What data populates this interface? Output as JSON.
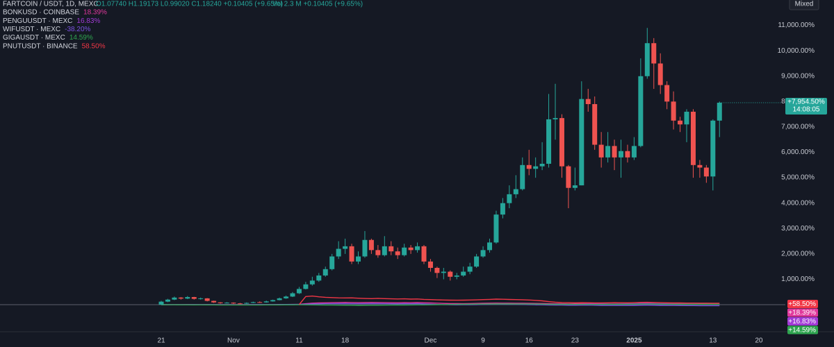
{
  "header": {
    "symbol": "FARTCOIN / USDT, 1D, MEXC",
    "ohlc": "O1.07740 H1.19173 L0.99020 C1.18240 +0.10405 (+9.65%)",
    "volume": "Vol 2.3 M +0.10405 (+9.65%)"
  },
  "mode_button": "Mixed",
  "chart_data": {
    "type": "candlestick",
    "categories": [
      "21",
      null,
      null,
      null,
      null,
      null,
      null,
      null,
      null,
      null,
      null,
      "Nov",
      null,
      null,
      null,
      null,
      null,
      null,
      null,
      null,
      null,
      "11",
      null,
      null,
      null,
      null,
      null,
      null,
      "18",
      null,
      null,
      null,
      null,
      null,
      null,
      null,
      null,
      null,
      null,
      null,
      null,
      "Dec",
      null,
      null,
      null,
      null,
      null,
      null,
      null,
      "9",
      null,
      null,
      null,
      null,
      null,
      null,
      "16",
      null,
      null,
      null,
      null,
      null,
      null,
      "23",
      null,
      null,
      null,
      null,
      null,
      null,
      null,
      null,
      "2025",
      null,
      null,
      null,
      null,
      null,
      null,
      null,
      null,
      null,
      null,
      null,
      "13",
      null,
      null,
      null,
      null,
      null,
      null,
      "20"
    ],
    "open": [
      0,
      120,
      200,
      280,
      240,
      300,
      230,
      250,
      150,
      90,
      60,
      80,
      50,
      40,
      70,
      100,
      90,
      130,
      180,
      250,
      320,
      450,
      620,
      800,
      950,
      1150,
      1400,
      1900,
      2200,
      2300,
      1700,
      1900,
      2550,
      2150,
      1950,
      2300,
      2100,
      1950,
      2250,
      2150,
      2300,
      1700,
      1450,
      1250,
      1300,
      1100,
      1150,
      1300,
      1500,
      1900,
      2150,
      2450,
      3550,
      4000,
      4350,
      4550,
      5500,
      5350,
      5450,
      5550,
      7300,
      7350,
      5450,
      4600,
      4700,
      8100,
      7900,
      6300,
      5800,
      6250,
      5800,
      6050,
      5800,
      6250,
      9000,
      10300,
      9500,
      8650,
      8000,
      7250,
      7100,
      7600,
      5500,
      5400,
      5050,
      7250,
      null,
      null,
      null,
      null,
      null,
      null
    ],
    "high": [
      150,
      230,
      320,
      300,
      340,
      310,
      280,
      260,
      160,
      100,
      100,
      90,
      70,
      90,
      120,
      130,
      160,
      200,
      280,
      360,
      500,
      700,
      900,
      1100,
      1250,
      1500,
      2000,
      2500,
      2600,
      2400,
      2100,
      2900,
      2600,
      2350,
      2700,
      2500,
      2250,
      2400,
      2350,
      2450,
      2350,
      1800,
      1500,
      1450,
      1350,
      1250,
      1500,
      1650,
      2000,
      2300,
      2600,
      3700,
      4200,
      4700,
      5100,
      5800,
      6100,
      5800,
      6400,
      8300,
      8700,
      7500,
      5500,
      5400,
      8800,
      8500,
      8200,
      6800,
      6800,
      6500,
      6500,
      6300,
      6600,
      9700,
      10900,
      10500,
      9900,
      8800,
      8400,
      7400,
      7700,
      7700,
      5700,
      5500,
      7300,
      8000,
      null,
      null,
      null,
      null,
      null,
      null
    ],
    "low": [
      0,
      100,
      180,
      200,
      220,
      200,
      200,
      130,
      70,
      40,
      50,
      30,
      20,
      30,
      60,
      70,
      80,
      120,
      170,
      230,
      300,
      420,
      600,
      750,
      900,
      1100,
      1350,
      1800,
      2000,
      1600,
      1600,
      1850,
      2000,
      1850,
      1900,
      1950,
      1800,
      1900,
      2000,
      2050,
      1600,
      1300,
      1050,
      1000,
      950,
      1000,
      1100,
      1200,
      1450,
      1850,
      2050,
      2400,
      3400,
      3800,
      4200,
      4500,
      5100,
      5000,
      5300,
      5400,
      6500,
      5000,
      3800,
      4500,
      4700,
      7600,
      6100,
      5400,
      5600,
      5300,
      5000,
      5600,
      5700,
      6200,
      8900,
      8500,
      8300,
      7700,
      6900,
      6800,
      6400,
      5000,
      5000,
      4800,
      4500,
      6600,
      null,
      null,
      null,
      null,
      null,
      null
    ],
    "close": [
      120,
      200,
      280,
      240,
      300,
      230,
      250,
      150,
      90,
      60,
      80,
      50,
      40,
      70,
      100,
      90,
      130,
      180,
      250,
      320,
      450,
      620,
      800,
      950,
      1150,
      1400,
      1900,
      2200,
      2300,
      1700,
      1900,
      2550,
      2150,
      1950,
      2300,
      2100,
      1950,
      2250,
      2150,
      2300,
      1700,
      1450,
      1250,
      1300,
      1100,
      1150,
      1300,
      1500,
      1900,
      2150,
      2450,
      3550,
      4000,
      4350,
      4550,
      5500,
      5350,
      5450,
      5550,
      7300,
      7350,
      5450,
      4600,
      4700,
      8100,
      7900,
      6300,
      5800,
      6250,
      5800,
      6050,
      5800,
      6250,
      9000,
      10300,
      9500,
      8650,
      8000,
      7250,
      7100,
      7600,
      5500,
      5400,
      5050,
      7250,
      7954.5,
      null,
      null,
      null,
      null,
      null,
      null
    ],
    "up_color": "#26a69a",
    "down_color": "#ef5350",
    "last_label": "+7,954.50%",
    "countdown": "14:08:05",
    "ylim": [
      -1065,
      12000
    ],
    "yticks": [
      {
        "value": 1000,
        "label": "1,000.00%"
      },
      {
        "value": 2000,
        "label": "2,000.00%"
      },
      {
        "value": 3000,
        "label": "3,000.00%"
      },
      {
        "value": 4000,
        "label": "4,000.00%"
      },
      {
        "value": 5000,
        "label": "5,000.00%"
      },
      {
        "value": 6000,
        "label": "6,000.00%"
      },
      {
        "value": 7000,
        "label": "7,000.00%"
      },
      {
        "value": 8000,
        "label": "8,000.00%"
      },
      {
        "value": 9000,
        "label": "9,000.00%"
      },
      {
        "value": 10000,
        "label": "10,000.00%"
      },
      {
        "value": 11000,
        "label": "11,000.00%"
      }
    ],
    "series": [
      {
        "name": "BONKUSD · COINBASE",
        "color": "#e0389b",
        "last_label": "18.39%",
        "badge_label": "+18.39%",
        "values": [
          0,
          3,
          5,
          4,
          6,
          5,
          4,
          3,
          2,
          1,
          2,
          1,
          0,
          2,
          3,
          2,
          4,
          5,
          7,
          9,
          12,
          15,
          40,
          60,
          70,
          75,
          80,
          85,
          90,
          85,
          80,
          82,
          88,
          85,
          80,
          78,
          76,
          80,
          78,
          82,
          75,
          70,
          60,
          50,
          45,
          42,
          40,
          45,
          50,
          55,
          60,
          65,
          62,
          60,
          58,
          55,
          52,
          50,
          48,
          45,
          40,
          38,
          35,
          36,
          40,
          38,
          35,
          33,
          32,
          30,
          32,
          30,
          34,
          38,
          40,
          38,
          35,
          32,
          30,
          28,
          26,
          24,
          22,
          20,
          19,
          18.39,
          null,
          null,
          null,
          null,
          null,
          null
        ]
      },
      {
        "name": "PENGUUSDT · MEXC",
        "color": "#a23ad6",
        "last_label": "16.83%",
        "badge_label": "+16.83%",
        "values": [
          null,
          null,
          null,
          null,
          null,
          null,
          null,
          null,
          null,
          null,
          null,
          null,
          null,
          null,
          null,
          null,
          null,
          null,
          null,
          null,
          null,
          null,
          null,
          null,
          null,
          null,
          null,
          null,
          null,
          null,
          null,
          null,
          null,
          null,
          null,
          null,
          null,
          null,
          null,
          null,
          null,
          null,
          null,
          null,
          null,
          null,
          null,
          null,
          null,
          null,
          null,
          null,
          null,
          null,
          null,
          null,
          null,
          0,
          10,
          5,
          20,
          15,
          10,
          8,
          12,
          25,
          30,
          28,
          26,
          24,
          30,
          35,
          40,
          50,
          55,
          45,
          40,
          35,
          30,
          28,
          25,
          22,
          20,
          18,
          17,
          16.83,
          null,
          null,
          null,
          null,
          null,
          null
        ]
      },
      {
        "name": "WIFUSDT · MEXC",
        "color": "#7b52e0",
        "last_label": "-38.20%",
        "values": [
          0,
          2,
          4,
          3,
          5,
          4,
          3,
          2,
          0,
          -2,
          -1,
          -3,
          -4,
          -2,
          0,
          1,
          2,
          4,
          6,
          8,
          10,
          12,
          20,
          30,
          35,
          38,
          40,
          42,
          45,
          40,
          38,
          40,
          45,
          42,
          38,
          36,
          35,
          38,
          36,
          40,
          30,
          20,
          10,
          5,
          0,
          -5,
          -3,
          0,
          5,
          10,
          15,
          20,
          18,
          15,
          12,
          10,
          5,
          0,
          -5,
          -10,
          -15,
          -12,
          -20,
          -22,
          -18,
          -15,
          -20,
          -25,
          -28,
          -30,
          -28,
          -30,
          -26,
          -20,
          -18,
          -22,
          -25,
          -28,
          -30,
          -32,
          -34,
          -35,
          -36,
          -37,
          -38,
          -38.2,
          null,
          null,
          null,
          null,
          null,
          null
        ]
      },
      {
        "name": "GIGAUSDT · MEXC",
        "color": "#2ea44f",
        "last_label": "14.59%",
        "badge_label": "+14.59%",
        "values": [
          0,
          -2,
          -3,
          -4,
          -5,
          -6,
          -5,
          -6,
          -8,
          -10,
          -9,
          -10,
          -11,
          -10,
          -9,
          -10,
          -8,
          -7,
          -6,
          -5,
          -4,
          -3,
          -5,
          -8,
          -10,
          -12,
          -15,
          -18,
          -20,
          -22,
          -25,
          -24,
          -22,
          -20,
          -18,
          -16,
          -14,
          -12,
          -10,
          -8,
          -6,
          -5,
          0,
          5,
          10,
          12,
          15,
          18,
          20,
          22,
          25,
          28,
          30,
          28,
          26,
          25,
          24,
          22,
          20,
          18,
          16,
          15,
          14,
          13,
          12,
          11,
          10,
          12,
          14,
          15,
          16,
          18,
          20,
          22,
          24,
          22,
          20,
          18,
          17,
          16,
          15,
          15,
          14,
          14,
          14.5,
          14.59,
          null,
          null,
          null,
          null,
          null,
          null
        ]
      },
      {
        "name": "PNUTUSDT · BINANCE",
        "color": "#f23645",
        "last_label": "58.50%",
        "badge_label": "+58.50%",
        "values": [
          null,
          null,
          null,
          null,
          null,
          null,
          null,
          null,
          null,
          null,
          null,
          null,
          null,
          null,
          null,
          null,
          null,
          null,
          null,
          null,
          null,
          0,
          320,
          340,
          310,
          290,
          280,
          270,
          265,
          270,
          255,
          245,
          240,
          250,
          240,
          230,
          225,
          230,
          220,
          225,
          210,
          200,
          190,
          185,
          180,
          175,
          180,
          185,
          190,
          200,
          210,
          220,
          215,
          205,
          200,
          195,
          185,
          170,
          150,
          120,
          100,
          85,
          80,
          75,
          80,
          78,
          70,
          72,
          75,
          80,
          78,
          76,
          80,
          90,
          95,
          88,
          80,
          75,
          70,
          68,
          65,
          64,
          62,
          60,
          59,
          58.5,
          null,
          null,
          null,
          null,
          null,
          null
        ]
      }
    ]
  }
}
